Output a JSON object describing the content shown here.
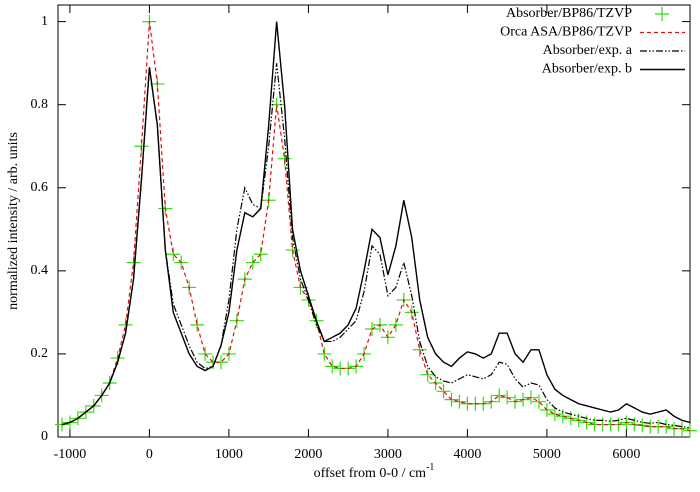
{
  "chart_data": {
    "type": "line",
    "xlabel": "offset from 0-0 / cm",
    "xlabel_superscript": "-1",
    "ylabel": "normalized intensity / arb. units",
    "xlim": [
      -1150,
      6800
    ],
    "ylim": [
      0,
      1.04
    ],
    "xticks": [
      -1000,
      0,
      1000,
      2000,
      3000,
      4000,
      5000,
      6000
    ],
    "yticks": [
      0,
      0.2,
      0.4,
      0.6,
      0.8,
      1
    ],
    "legend": "top-right",
    "grid": false,
    "x": [
      -1100,
      -1000,
      -900,
      -800,
      -700,
      -600,
      -500,
      -400,
      -300,
      -200,
      -100,
      0,
      100,
      200,
      300,
      400,
      500,
      600,
      700,
      800,
      900,
      1000,
      1100,
      1200,
      1300,
      1400,
      1500,
      1600,
      1700,
      1800,
      1900,
      2000,
      2100,
      2200,
      2300,
      2400,
      2500,
      2600,
      2700,
      2800,
      2900,
      3000,
      3100,
      3200,
      3300,
      3400,
      3500,
      3600,
      3700,
      3800,
      3900,
      4000,
      4100,
      4200,
      4300,
      4400,
      4500,
      4600,
      4700,
      4800,
      4900,
      5000,
      5100,
      5200,
      5300,
      5400,
      5500,
      5600,
      5700,
      5800,
      5900,
      6000,
      6100,
      6200,
      6300,
      6400,
      6500,
      6600,
      6700,
      6800
    ],
    "series": [
      {
        "name": "Absorber/BP86/TZVP",
        "color": "#33dd11",
        "style": "markers",
        "values": [
          0.03,
          0.035,
          0.045,
          0.06,
          0.075,
          0.1,
          0.13,
          0.19,
          0.27,
          0.42,
          0.7,
          1.0,
          0.85,
          0.55,
          0.44,
          0.42,
          0.36,
          0.27,
          0.2,
          0.18,
          0.18,
          0.2,
          0.28,
          0.38,
          0.42,
          0.44,
          0.57,
          0.8,
          0.67,
          0.45,
          0.36,
          0.33,
          0.28,
          0.2,
          0.17,
          0.165,
          0.165,
          0.17,
          0.2,
          0.26,
          0.27,
          0.24,
          0.27,
          0.33,
          0.3,
          0.21,
          0.15,
          0.13,
          0.11,
          0.09,
          0.085,
          0.08,
          0.08,
          0.08,
          0.085,
          0.1,
          0.095,
          0.085,
          0.09,
          0.095,
          0.085,
          0.065,
          0.055,
          0.05,
          0.045,
          0.04,
          0.035,
          0.03,
          0.03,
          0.03,
          0.03,
          0.035,
          0.03,
          0.028,
          0.025,
          0.025,
          0.025,
          0.02,
          0.02,
          0.015
        ]
      },
      {
        "name": "Orca ASA/BP86/TZVP",
        "color": "#dd1111",
        "style": "dashed",
        "values": [
          0.03,
          0.035,
          0.045,
          0.06,
          0.075,
          0.1,
          0.13,
          0.19,
          0.27,
          0.42,
          0.7,
          1.0,
          0.85,
          0.55,
          0.44,
          0.42,
          0.36,
          0.27,
          0.2,
          0.18,
          0.18,
          0.2,
          0.28,
          0.38,
          0.42,
          0.44,
          0.57,
          0.8,
          0.67,
          0.45,
          0.36,
          0.33,
          0.28,
          0.2,
          0.17,
          0.165,
          0.165,
          0.17,
          0.2,
          0.26,
          0.27,
          0.24,
          0.27,
          0.33,
          0.3,
          0.21,
          0.15,
          0.13,
          0.11,
          0.09,
          0.085,
          0.08,
          0.08,
          0.08,
          0.085,
          0.1,
          0.095,
          0.085,
          0.09,
          0.095,
          0.085,
          0.065,
          0.055,
          0.05,
          0.045,
          0.04,
          0.035,
          0.03,
          0.03,
          0.03,
          0.03,
          0.035,
          0.03,
          0.028,
          0.025,
          0.025,
          0.025,
          0.02,
          0.02,
          0.015
        ]
      },
      {
        "name": "Absorber/exp. a",
        "color": "#000000",
        "style": "dashdot",
        "values": [
          0.03,
          0.035,
          0.045,
          0.06,
          0.075,
          0.1,
          0.13,
          0.18,
          0.25,
          0.38,
          0.62,
          0.89,
          0.75,
          0.45,
          0.32,
          0.27,
          0.22,
          0.18,
          0.165,
          0.17,
          0.22,
          0.33,
          0.5,
          0.6,
          0.56,
          0.55,
          0.7,
          0.9,
          0.72,
          0.48,
          0.38,
          0.33,
          0.27,
          0.23,
          0.23,
          0.24,
          0.26,
          0.28,
          0.35,
          0.46,
          0.44,
          0.34,
          0.36,
          0.42,
          0.34,
          0.23,
          0.17,
          0.145,
          0.135,
          0.13,
          0.14,
          0.15,
          0.145,
          0.14,
          0.15,
          0.18,
          0.175,
          0.14,
          0.12,
          0.13,
          0.125,
          0.09,
          0.07,
          0.06,
          0.055,
          0.05,
          0.045,
          0.04,
          0.04,
          0.038,
          0.04,
          0.045,
          0.04,
          0.035,
          0.033,
          0.035,
          0.03,
          0.028,
          0.025,
          0.022
        ]
      },
      {
        "name": "Absorber/exp. b",
        "color": "#000000",
        "style": "solid",
        "values": [
          0.03,
          0.035,
          0.045,
          0.06,
          0.075,
          0.1,
          0.13,
          0.18,
          0.25,
          0.38,
          0.62,
          0.89,
          0.75,
          0.45,
          0.3,
          0.25,
          0.2,
          0.17,
          0.16,
          0.17,
          0.22,
          0.3,
          0.45,
          0.54,
          0.53,
          0.55,
          0.75,
          1.0,
          0.8,
          0.5,
          0.4,
          0.34,
          0.28,
          0.23,
          0.24,
          0.25,
          0.27,
          0.31,
          0.4,
          0.5,
          0.48,
          0.39,
          0.46,
          0.57,
          0.48,
          0.33,
          0.24,
          0.2,
          0.18,
          0.17,
          0.19,
          0.205,
          0.2,
          0.19,
          0.2,
          0.25,
          0.25,
          0.2,
          0.18,
          0.21,
          0.21,
          0.15,
          0.115,
          0.1,
          0.09,
          0.08,
          0.075,
          0.07,
          0.065,
          0.06,
          0.065,
          0.08,
          0.07,
          0.06,
          0.055,
          0.06,
          0.065,
          0.05,
          0.04,
          0.035
        ]
      }
    ]
  }
}
